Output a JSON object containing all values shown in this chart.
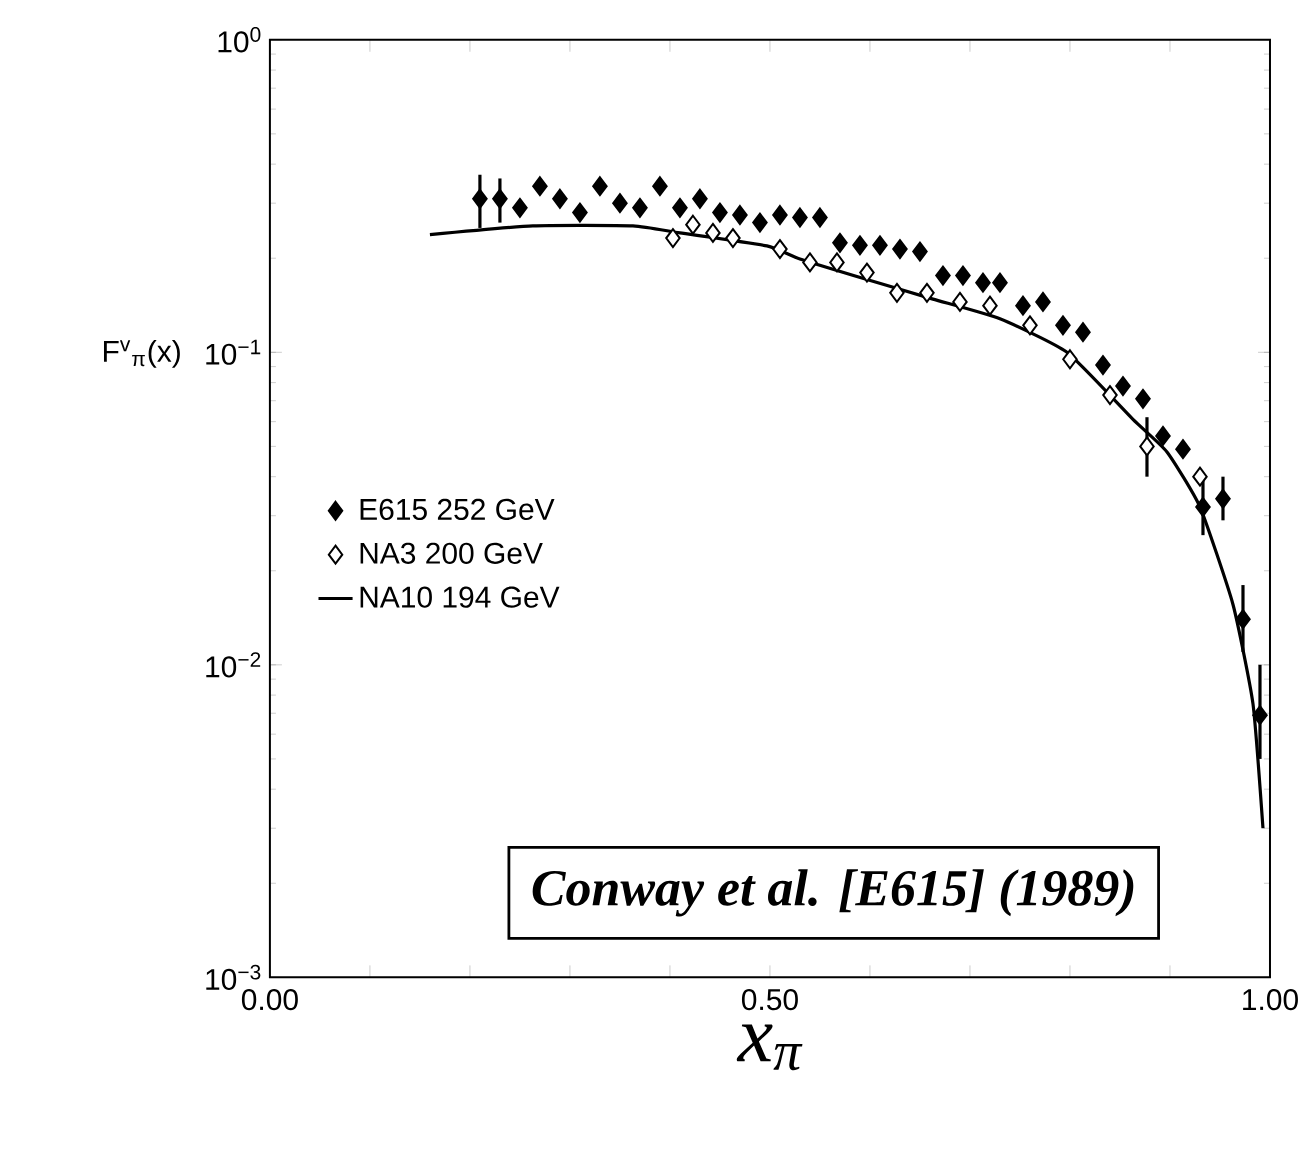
{
  "chart_data": {
    "type": "line",
    "xlabel": "x$_{π}$",
    "ylabel": "F$^{v}$$_{π}$(x)",
    "log": "y",
    "xlim": [
      0,
      1
    ],
    "ylim": [
      0.001,
      1
    ],
    "xticks": [
      {
        "value": 0,
        "label": "0.00"
      },
      {
        "value": 0.1,
        "label": null
      },
      {
        "value": 0.2,
        "label": null
      },
      {
        "value": 0.3,
        "label": null
      },
      {
        "value": 0.4,
        "label": null
      },
      {
        "value": 0.5,
        "label": "0.50"
      },
      {
        "value": 0.6,
        "label": null
      },
      {
        "value": 0.7,
        "label": null
      },
      {
        "value": 0.8,
        "label": null
      },
      {
        "value": 0.9,
        "label": null
      },
      {
        "value": 1,
        "label": "1.00"
      }
    ],
    "yticks": [
      {
        "value": 0.001,
        "label": "10$^{−3}$"
      },
      {
        "value": 0.01,
        "label": "10$^{−2}$"
      },
      {
        "value": 0.1,
        "label": "10$^{−1}$"
      },
      {
        "value": 1,
        "label": "10$^{0}$"
      }
    ],
    "legend": "left",
    "grid": false,
    "annotations": [
      "Conway et al. [E615] (1989)"
    ],
    "series": [
      {
        "name": "E615  252  GeV",
        "type": "scatter",
        "marker": "diamond",
        "color": "#000000",
        "x": [
          0.21,
          0.23,
          0.25,
          0.27,
          0.29,
          0.31,
          0.33,
          0.35,
          0.37,
          0.39,
          0.41,
          0.43,
          0.45,
          0.47,
          0.49,
          0.51,
          0.53,
          0.55,
          0.57,
          0.59,
          0.61,
          0.63,
          0.65,
          0.673,
          0.693,
          0.713,
          0.73,
          0.753,
          0.773,
          0.793,
          0.813,
          0.833,
          0.853,
          0.873,
          0.893,
          0.913,
          0.933,
          0.953,
          0.973,
          0.99
        ],
        "values": [
          0.31,
          0.31,
          0.29,
          0.34,
          0.31,
          0.28,
          0.34,
          0.3,
          0.29,
          0.34,
          0.29,
          0.31,
          0.28,
          0.275,
          0.26,
          0.275,
          0.27,
          0.27,
          0.224,
          0.22,
          0.22,
          0.214,
          0.21,
          0.176,
          0.176,
          0.167,
          0.167,
          0.141,
          0.145,
          0.122,
          0.116,
          0.091,
          0.078,
          0.071,
          0.054,
          0.049,
          0.032,
          0.034,
          0.014,
          0.0069
        ],
        "errors": [
          [
            0.25,
            0.37
          ],
          [
            0.26,
            0.36
          ],
          null,
          null,
          null,
          null,
          null,
          null,
          null,
          null,
          null,
          null,
          null,
          null,
          null,
          null,
          null,
          null,
          null,
          null,
          null,
          null,
          null,
          null,
          null,
          null,
          null,
          null,
          null,
          null,
          null,
          null,
          null,
          null,
          null,
          null,
          [
            0.026,
            0.039
          ],
          [
            0.029,
            0.04
          ],
          [
            0.011,
            0.018
          ],
          [
            0.005,
            0.01
          ]
        ]
      },
      {
        "name": "NA3  200  GeV",
        "type": "scatter",
        "marker": "diamond",
        "color": "#ffffff",
        "x": [
          0.403,
          0.423,
          0.443,
          0.463,
          0.51,
          0.54,
          0.567,
          0.597,
          0.627,
          0.657,
          0.69,
          0.72,
          0.76,
          0.8,
          0.84,
          0.877,
          0.93
        ],
        "values": [
          0.232,
          0.256,
          0.241,
          0.232,
          0.214,
          0.194,
          0.194,
          0.18,
          0.155,
          0.155,
          0.145,
          0.141,
          0.122,
          0.095,
          0.073,
          0.05,
          0.04
        ],
        "errors": [
          null,
          null,
          null,
          null,
          null,
          null,
          null,
          null,
          null,
          null,
          null,
          null,
          null,
          null,
          null,
          [
            0.04,
            0.062
          ],
          null
        ]
      },
      {
        "name": "NA10  194  GeV",
        "marker": "none",
        "line_style": "solid",
        "color": "#000000",
        "x": [
          0.16,
          0.263,
          0.363,
          0.41,
          0.497,
          0.53,
          0.597,
          0.663,
          0.73,
          0.797,
          0.863,
          0.897,
          0.93,
          0.963,
          0.983,
          0.993
        ],
        "values": [
          0.238,
          0.254,
          0.254,
          0.241,
          0.219,
          0.199,
          0.171,
          0.148,
          0.128,
          0.1,
          0.061,
          0.048,
          0.032,
          0.0156,
          0.0075,
          0.003
        ]
      }
    ]
  }
}
